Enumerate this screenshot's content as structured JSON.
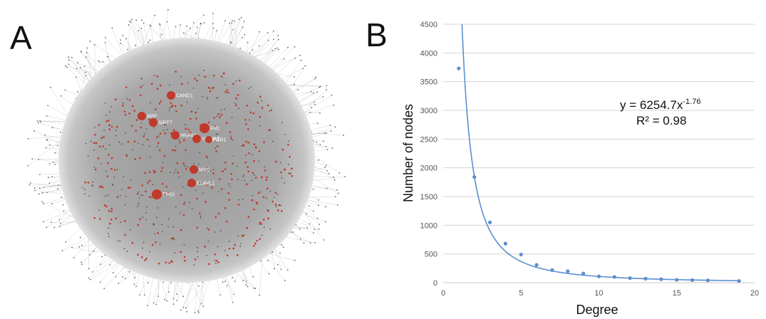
{
  "panels": {
    "a": "A",
    "b": "B"
  },
  "network": {
    "edge_color": "#bdbdbd",
    "node_color": "#c0392b",
    "hubs": [
      "CAND1",
      "APP",
      "SIRT7",
      "FN1",
      "HNF4A",
      "YWHAZ",
      "ESR1",
      "MYC",
      "ELAVL1",
      "TP53"
    ]
  },
  "chart_data": {
    "type": "scatter",
    "title": "",
    "xlabel": "Degree",
    "ylabel": "Number of nodes",
    "xlim": [
      0,
      20
    ],
    "ylim": [
      0,
      4500
    ],
    "xticks": [
      0,
      5,
      10,
      15,
      20
    ],
    "yticks": [
      0,
      500,
      1000,
      1500,
      2000,
      2500,
      3000,
      3500,
      4000,
      4500
    ],
    "grid": true,
    "point_color": "#5b8fcf",
    "fit_color": "#5b8fcf",
    "x": [
      1,
      2,
      3,
      4,
      5,
      6,
      7,
      8,
      9,
      10,
      11,
      12,
      13,
      14,
      15,
      16,
      17,
      19
    ],
    "y": [
      3730,
      1840,
      1050,
      680,
      490,
      310,
      220,
      200,
      160,
      110,
      100,
      80,
      70,
      60,
      50,
      45,
      40,
      30
    ],
    "fit": {
      "coefficient": 6254.7,
      "exponent": -1.76
    },
    "annotation": {
      "equation_base": "y = 6254.7x",
      "equation_exp": "-1.76",
      "r2": "R² = 0.98"
    }
  }
}
